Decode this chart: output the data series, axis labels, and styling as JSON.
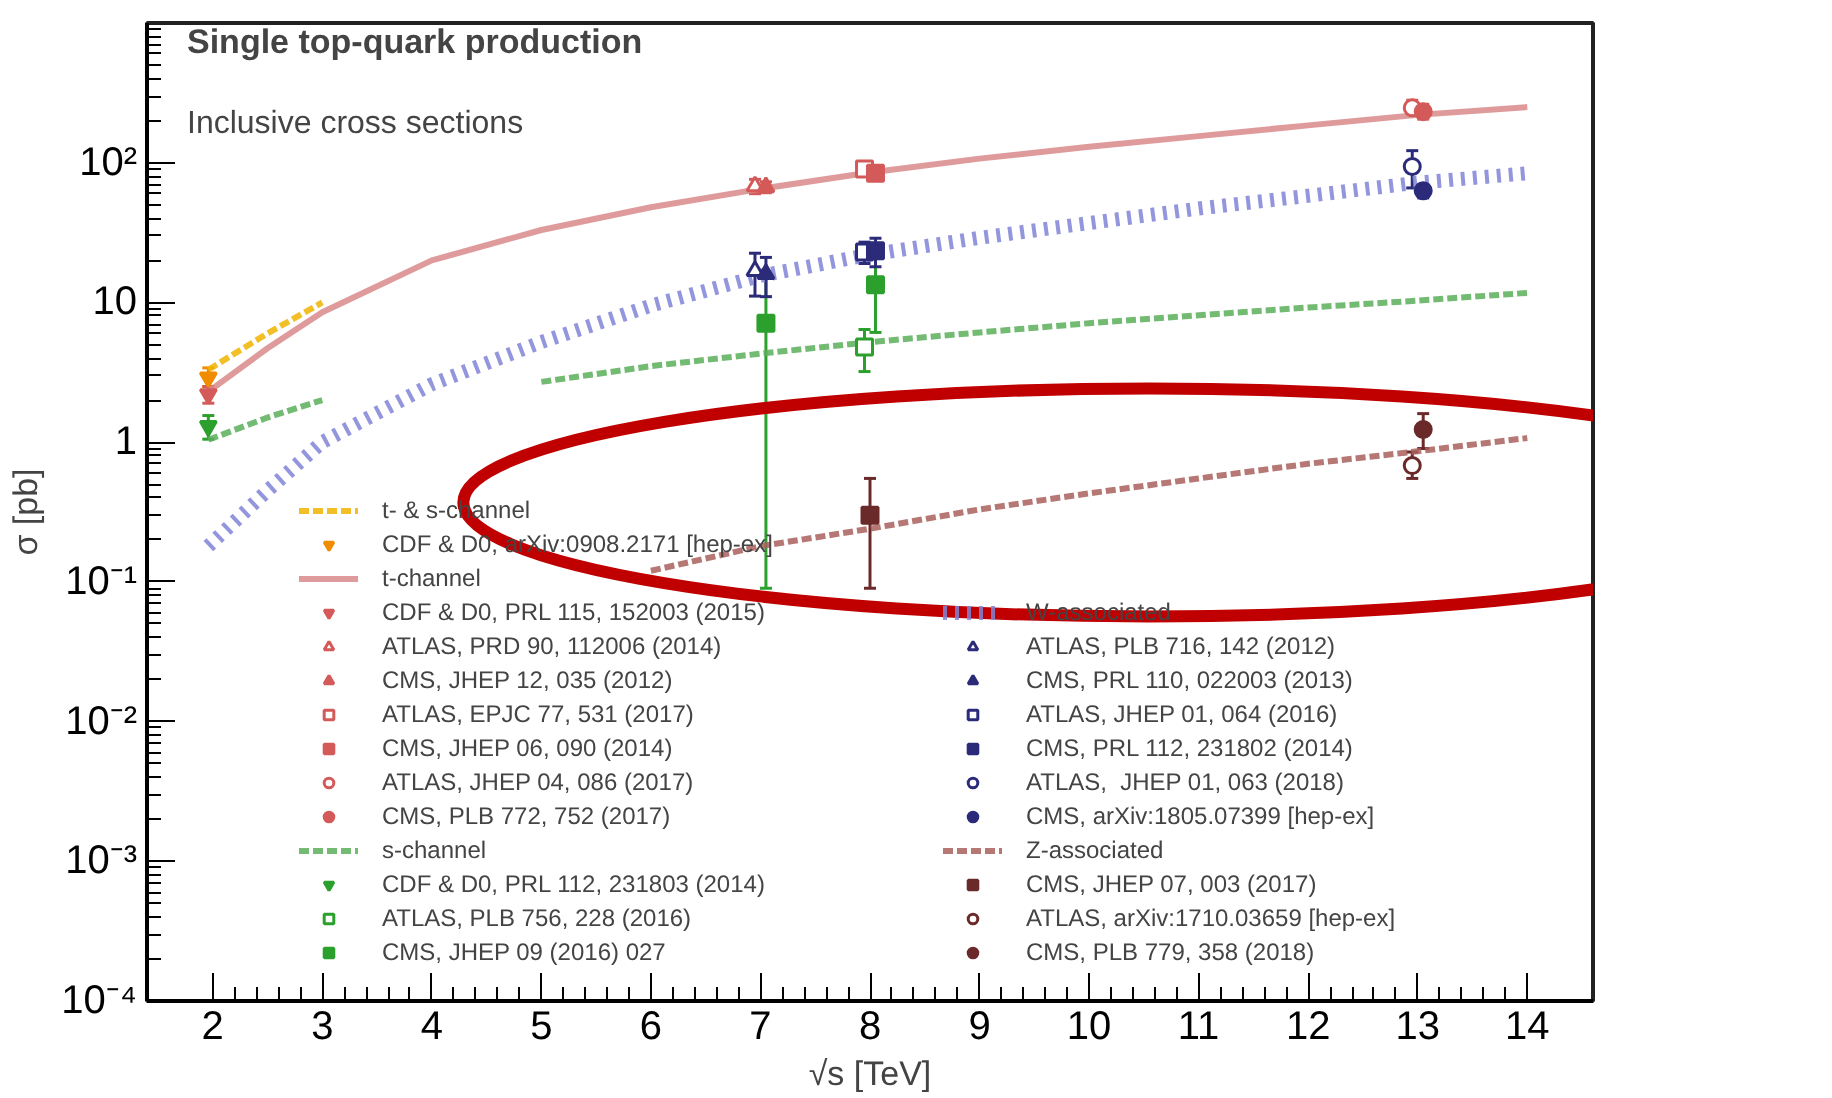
{
  "chart_data": {
    "type": "line",
    "title": "Single top-quark production",
    "subtitle": "Inclusive cross sections",
    "xlabel": "√s [TeV]",
    "ylabel": "σ [pb]",
    "log": "y",
    "xlim": [
      1.4,
      14.6
    ],
    "ylim": [
      0.0001,
      1000
    ],
    "xticks": [
      2,
      3,
      4,
      5,
      6,
      7,
      8,
      9,
      10,
      11,
      12,
      13,
      14
    ],
    "yticks": [
      {
        "value": 0.0001,
        "label": "10⁻⁴"
      },
      {
        "value": 0.001,
        "label": "10⁻³"
      },
      {
        "value": 0.01,
        "label": "10⁻²"
      },
      {
        "value": 0.1,
        "label": "10⁻¹"
      },
      1,
      10,
      {
        "value": 100,
        "label": "10²"
      }
    ],
    "grid": false,
    "legend": "bottom",
    "series": [
      {
        "name": "t- & s-channel",
        "type": "line",
        "color": "#f0b400",
        "line_style": "dashed",
        "x": [
          1.96,
          2.5,
          3
        ],
        "values": [
          3.3,
          6.0,
          10
        ]
      },
      {
        "name": "CDF & D0, arXiv:0908.2171 [hep-ex]",
        "type": "scatter",
        "marker": "triangle_down",
        "color": "#f08c00",
        "x": [
          1.96
        ],
        "values": [
          2.9
        ],
        "errors": [
          [
            2.5,
            3.4
          ]
        ]
      },
      {
        "name": "t-channel",
        "type": "line",
        "color": "#d98a8a",
        "line_style": "solid",
        "x": [
          1.96,
          2.5,
          3,
          4,
          5,
          6,
          7,
          8,
          9,
          10,
          11,
          12,
          13,
          14
        ],
        "values": [
          2.3,
          4.7,
          8.5,
          20,
          33,
          48,
          65,
          85,
          107,
          130,
          155,
          185,
          220,
          250
        ]
      },
      {
        "name": "CDF & D0, PRL 115, 152003 (2015)",
        "type": "scatter",
        "marker": "triangle_down",
        "color": "#d45a5a",
        "x": [
          1.96
        ],
        "values": [
          2.2
        ],
        "errors": [
          [
            1.9,
            2.5
          ]
        ]
      },
      {
        "name": "ATLAS, PRD 90, 112006 (2014)",
        "type": "scatter",
        "marker": "triangle_open",
        "color": "#d45a5a",
        "x": [
          6.95
        ],
        "values": [
          68
        ],
        "errors": [
          [
            60,
            76
          ]
        ]
      },
      {
        "name": "CMS, JHEP 12, 035 (2012)",
        "type": "scatter",
        "marker": "triangle",
        "color": "#d45a5a",
        "x": [
          7.05
        ],
        "values": [
          67
        ],
        "errors": [
          [
            61,
            73
          ]
        ]
      },
      {
        "name": "ATLAS, EPJC 77, 531 (2017)",
        "type": "scatter",
        "marker": "square_open",
        "color": "#d45a5a",
        "x": [
          7.95
        ],
        "values": [
          90
        ],
        "errors": [
          [
            83,
            97
          ]
        ]
      },
      {
        "name": "CMS, JHEP 06, 090 (2014)",
        "type": "scatter",
        "marker": "square",
        "color": "#d45a5a",
        "x": [
          8.05
        ],
        "values": [
          84
        ],
        "errors": [
          [
            77,
            91
          ]
        ]
      },
      {
        "name": "ATLAS, JHEP 04, 086 (2017)",
        "type": "scatter",
        "marker": "circle_open",
        "color": "#d45a5a",
        "x": [
          12.95
        ],
        "values": [
          247
        ],
        "errors": [
          [
            220,
            280
          ]
        ]
      },
      {
        "name": "CMS, PLB 772, 752 (2017)",
        "type": "scatter",
        "marker": "circle",
        "color": "#d45a5a",
        "x": [
          13.05
        ],
        "values": [
          232
        ],
        "errors": [
          [
            205,
            262
          ]
        ]
      },
      {
        "name": "s-channel",
        "type": "line",
        "color": "#5aaf5a",
        "line_style": "dashed",
        "x": [
          1.96,
          2.5,
          3,
          4,
          5,
          6,
          7,
          8,
          9,
          10,
          11,
          12,
          13,
          14
        ],
        "values": [
          1.04,
          1.5,
          2.0,
          null,
          2.7,
          3.5,
          4.3,
          5.2,
          6.1,
          7.1,
          8.1,
          9.2,
          10.3,
          11.7
        ]
      },
      {
        "name": "CDF & D0, PRL 112, 231803 (2014)",
        "type": "scatter",
        "marker": "triangle_down",
        "color": "#2ca02c",
        "x": [
          1.96
        ],
        "values": [
          1.3
        ],
        "errors": [
          [
            1.05,
            1.55
          ]
        ]
      },
      {
        "name": "ATLAS, PLB 756, 228 (2016)",
        "type": "scatter",
        "marker": "square_open",
        "color": "#2ca02c",
        "x": [
          7.95
        ],
        "values": [
          4.8
        ],
        "errors": [
          [
            3.2,
            6.4
          ]
        ]
      },
      {
        "name": "CMS, JHEP 09 (2016) 027",
        "type": "scatter",
        "marker": "square",
        "color": "#2ca02c",
        "x": [
          7.05,
          8.05
        ],
        "values": [
          7.1,
          13.4
        ],
        "errors": [
          [
            0.09,
            15.2
          ],
          [
            6.1,
            20.7
          ]
        ]
      },
      {
        "name": "W-associated",
        "type": "line",
        "color": "#8084d6",
        "line_style": "dotted",
        "x": [
          1.96,
          2.5,
          3,
          4,
          5,
          6,
          7,
          8,
          9,
          10,
          11,
          12,
          13,
          14
        ],
        "values": [
          0.18,
          0.45,
          1.0,
          2.6,
          5.2,
          9.5,
          15.5,
          22,
          29,
          37,
          47,
          58,
          72,
          84
        ]
      },
      {
        "name": "ATLAS, PLB 716, 142 (2012)",
        "type": "scatter",
        "marker": "triangle_open",
        "color": "#2b2b7a",
        "x": [
          6.95
        ],
        "values": [
          16.8
        ],
        "errors": [
          [
            11.1,
            22.5
          ]
        ]
      },
      {
        "name": "CMS, PRL 110, 022003 (2013)",
        "type": "scatter",
        "marker": "triangle",
        "color": "#2b2b7a",
        "x": [
          7.05
        ],
        "values": [
          16
        ],
        "errors": [
          [
            11,
            21
          ]
        ]
      },
      {
        "name": "ATLAS, JHEP 01, 064 (2016)",
        "type": "scatter",
        "marker": "square_open",
        "color": "#2b2b7a",
        "x": [
          7.95
        ],
        "values": [
          23
        ],
        "errors": [
          [
            19,
            27
          ]
        ]
      },
      {
        "name": "CMS, PRL 112, 231802 (2014)",
        "type": "scatter",
        "marker": "square",
        "color": "#2b2b7a",
        "x": [
          8.05
        ],
        "values": [
          23.4
        ],
        "errors": [
          [
            18,
            28.8
          ]
        ]
      },
      {
        "name": "ATLAS,  JHEP 01, 063 (2018)",
        "type": "scatter",
        "marker": "circle_open",
        "color": "#2b2b7a",
        "x": [
          12.95
        ],
        "values": [
          94
        ],
        "errors": [
          [
            66,
            122
          ]
        ]
      },
      {
        "name": "CMS, arXiv:1805.07399 [hep-ex]",
        "type": "scatter",
        "marker": "circle",
        "color": "#2b2b7a",
        "x": [
          13.05
        ],
        "values": [
          63
        ],
        "errors": [
          [
            56,
            70
          ]
        ]
      },
      {
        "name": "Z-associated",
        "type": "line",
        "color": "#a8605c",
        "line_style": "dashed",
        "x": [
          6,
          7,
          8,
          9,
          10,
          11,
          12,
          13,
          14
        ],
        "values": [
          0.12,
          0.18,
          0.24,
          0.33,
          0.43,
          0.55,
          0.7,
          0.86,
          1.07
        ]
      },
      {
        "name": "CMS, JHEP 07, 003 (2017)",
        "type": "scatter",
        "marker": "square",
        "color": "#6b2a2a",
        "x": [
          8
        ],
        "values": [
          0.3
        ],
        "errors": [
          [
            0.09,
            0.55
          ]
        ]
      },
      {
        "name": "ATLAS, arXiv:1710.03659 [hep-ex]",
        "type": "scatter",
        "marker": "circle_open",
        "color": "#6b2a2a",
        "x": [
          12.95
        ],
        "values": [
          0.68
        ],
        "errors": [
          [
            0.55,
            0.85
          ]
        ]
      },
      {
        "name": "CMS, PLB 779, 358 (2018)",
        "type": "scatter",
        "marker": "circle",
        "color": "#6b2a2a",
        "x": [
          13.05
        ],
        "values": [
          1.23
        ],
        "errors": [
          [
            0.9,
            1.6
          ]
        ]
      }
    ]
  }
}
